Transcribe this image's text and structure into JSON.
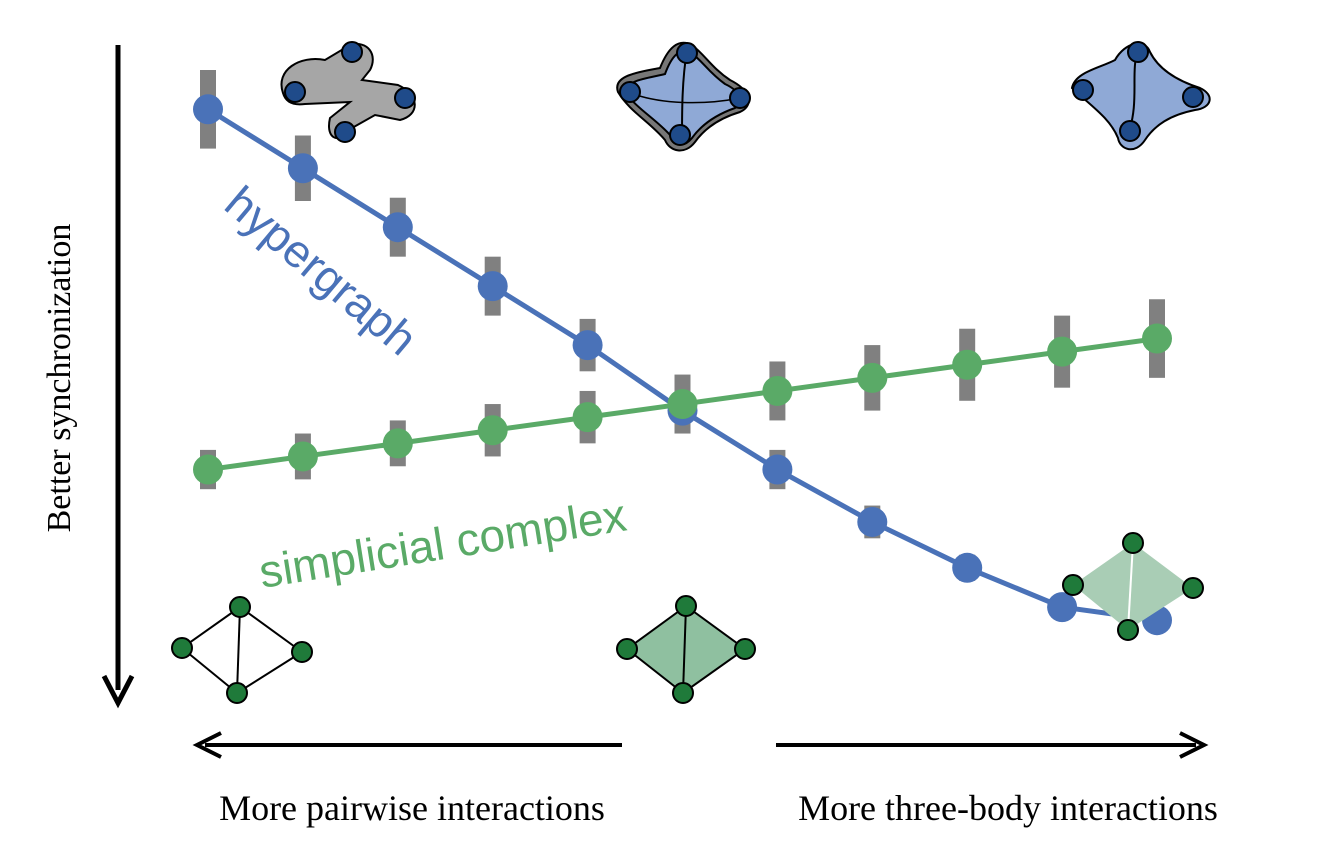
{
  "chart_data": {
    "type": "line",
    "x": [
      1,
      2,
      3,
      4,
      5,
      6,
      7,
      8,
      9,
      10,
      11
    ],
    "ylim": [
      0,
      10
    ],
    "y_inverted": true,
    "series": [
      {
        "name": "hypergraph",
        "color": "#4a72b8",
        "values": [
          0.6,
          1.5,
          2.4,
          3.3,
          4.2,
          5.2,
          6.1,
          6.9,
          7.6,
          8.2,
          8.4
        ],
        "error": [
          0.6,
          0.5,
          0.45,
          0.45,
          0.4,
          0.35,
          0.3,
          0.25,
          0.2,
          0.15,
          0.0
        ]
      },
      {
        "name": "simplicial complex",
        "color": "#5aaa67",
        "values": [
          6.1,
          5.9,
          5.7,
          5.5,
          5.3,
          5.1,
          4.9,
          4.7,
          4.5,
          4.3,
          4.1
        ],
        "error": [
          0.3,
          0.35,
          0.35,
          0.4,
          0.4,
          0.45,
          0.45,
          0.5,
          0.55,
          0.55,
          0.6
        ]
      }
    ],
    "error_bar_color": "#808080",
    "ylabel": "Better synchronization",
    "x_left_label": "More pairwise interactions",
    "x_right_label": "More three-body interactions",
    "series_labels": {
      "hypergraph": "hypergraph",
      "simplicial_complex": "simplicial complex"
    }
  },
  "colors": {
    "hyper_fill": "#8fa9d6",
    "hyper_node": "#1f4b8a",
    "gray_fill": "#a6a6a6",
    "green_fill": "#8fc0a0",
    "green_node": "#1f7a3a",
    "axis": "#000000"
  }
}
